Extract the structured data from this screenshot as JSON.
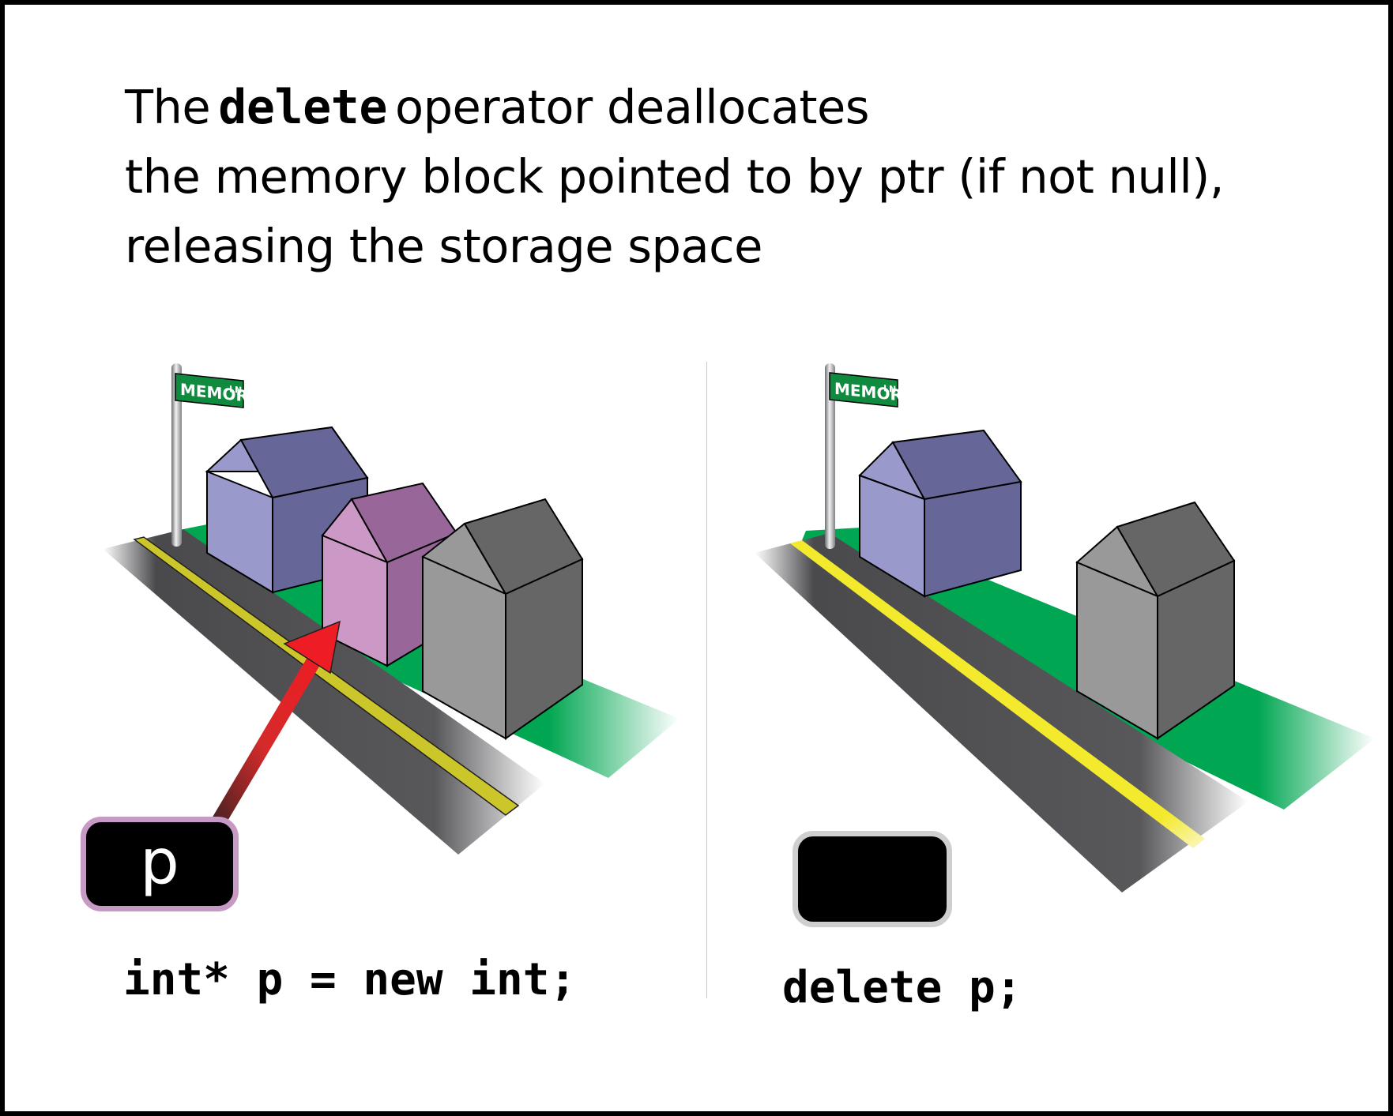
{
  "heading": {
    "prefix": "The",
    "keyword": "delete",
    "line1_rest": "operator deallocates",
    "line2": "the memory block pointed to by ptr (if not null),",
    "line3": "releasing the storage space"
  },
  "left_panel": {
    "street_sign": "MEMORY",
    "street_sign_suffix": "LN",
    "pointer_label": "p",
    "code": "int* p = new int;"
  },
  "right_panel": {
    "street_sign": "MEMORY",
    "street_sign_suffix": "LN",
    "code": "delete p;"
  },
  "colors": {
    "road": "#4a4a4d",
    "road_line_left": "#cbc72a",
    "road_line_right": "#f3ea2e",
    "grass": "#00a651",
    "house_blue_light": "#9a99cc",
    "house_blue_dark": "#666699",
    "house_pink_light": "#cc99c6",
    "house_pink_dark": "#996699",
    "house_gray_light": "#999999",
    "house_gray_dark": "#666666",
    "sign_green": "#108a3e",
    "arrow_red": "#ee1c24",
    "pointer_border_active": "#c79ac6",
    "pointer_border_null": "#cfcfcf"
  }
}
